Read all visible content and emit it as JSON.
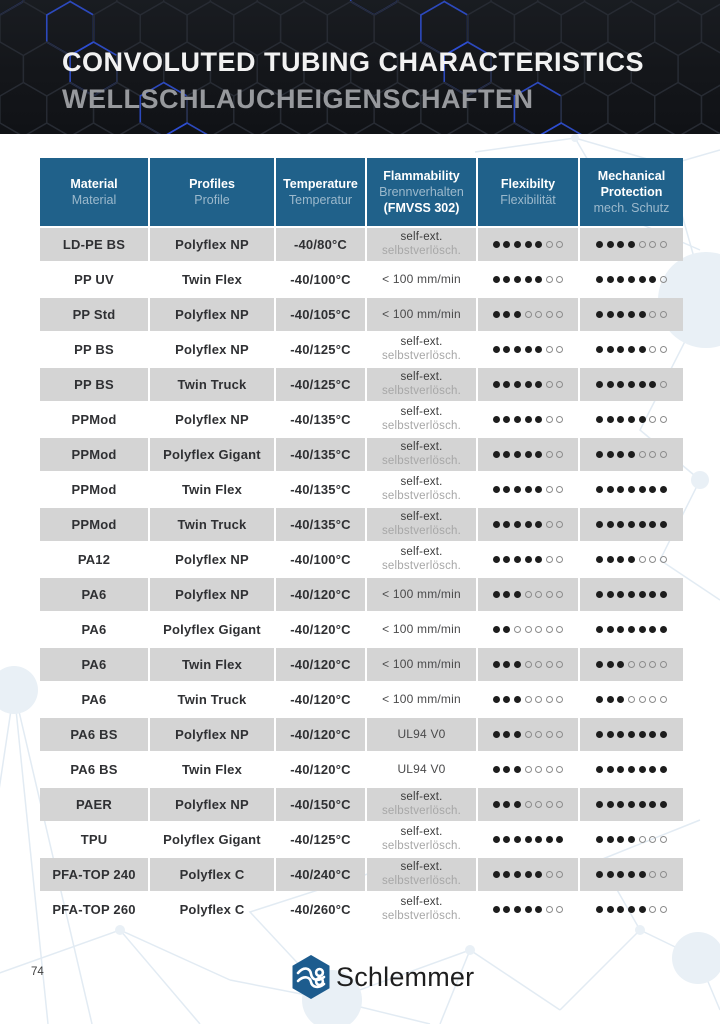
{
  "banner": {
    "title_en": "CONVOLUTED TUBING CHARACTERISTICS",
    "title_de": "WELLSCHLAUCHEIGENSCHAFTEN"
  },
  "table": {
    "columns": [
      {
        "en": "Material",
        "de": "Material"
      },
      {
        "en": "Profiles",
        "de": "Profile"
      },
      {
        "en": "Temperature",
        "de": "Temperatur"
      },
      {
        "en": "Flammability",
        "de": "Brennverhalten",
        "extra": "(FMVSS 302)"
      },
      {
        "en": "Flexibilty",
        "de": "Flexibilität"
      },
      {
        "en": "Mechanical Protection",
        "de": "mech. Schutz"
      }
    ],
    "rating_scale": 7,
    "rows": [
      {
        "material": "LD-PE BS",
        "profile": "Polyflex NP",
        "temperature": "-40/80°C",
        "flammability": [
          "self-ext.",
          "selbstverlösch."
        ],
        "flexibility": 5,
        "protection": 4
      },
      {
        "material": "PP UV",
        "profile": "Twin Flex",
        "temperature": "-40/100°C",
        "flammability": [
          "< 100 mm/min"
        ],
        "flexibility": 5,
        "protection": 6
      },
      {
        "material": "PP Std",
        "profile": "Polyflex NP",
        "temperature": "-40/105°C",
        "flammability": [
          "< 100 mm/min"
        ],
        "flexibility": 3,
        "protection": 5
      },
      {
        "material": "PP BS",
        "profile": "Polyflex NP",
        "temperature": "-40/125°C",
        "flammability": [
          "self-ext.",
          "selbstverlösch."
        ],
        "flexibility": 5,
        "protection": 5
      },
      {
        "material": "PP BS",
        "profile": "Twin Truck",
        "temperature": "-40/125°C",
        "flammability": [
          "self-ext.",
          "selbstverlösch."
        ],
        "flexibility": 5,
        "protection": 6
      },
      {
        "material": "PPMod",
        "profile": "Polyflex NP",
        "temperature": "-40/135°C",
        "flammability": [
          "self-ext.",
          "selbstverlösch."
        ],
        "flexibility": 5,
        "protection": 5
      },
      {
        "material": "PPMod",
        "profile": "Polyflex Gigant",
        "temperature": "-40/135°C",
        "flammability": [
          "self-ext.",
          "selbstverlösch."
        ],
        "flexibility": 5,
        "protection": 4
      },
      {
        "material": "PPMod",
        "profile": "Twin Flex",
        "temperature": "-40/135°C",
        "flammability": [
          "self-ext.",
          "selbstverlösch."
        ],
        "flexibility": 5,
        "protection": 7
      },
      {
        "material": "PPMod",
        "profile": "Twin Truck",
        "temperature": "-40/135°C",
        "flammability": [
          "self-ext.",
          "selbstverlösch."
        ],
        "flexibility": 5,
        "protection": 7
      },
      {
        "material": "PA12",
        "profile": "Polyflex NP",
        "temperature": "-40/100°C",
        "flammability": [
          "self-ext.",
          "selbstverlösch."
        ],
        "flexibility": 5,
        "protection": 4
      },
      {
        "material": "PA6",
        "profile": "Polyflex NP",
        "temperature": "-40/120°C",
        "flammability": [
          "< 100 mm/min"
        ],
        "flexibility": 3,
        "protection": 7
      },
      {
        "material": "PA6",
        "profile": "Polyflex Gigant",
        "temperature": "-40/120°C",
        "flammability": [
          "< 100 mm/min"
        ],
        "flexibility": 2,
        "protection": 7
      },
      {
        "material": "PA6",
        "profile": "Twin Flex",
        "temperature": "-40/120°C",
        "flammability": [
          "< 100 mm/min"
        ],
        "flexibility": 3,
        "protection": 3
      },
      {
        "material": "PA6",
        "profile": "Twin Truck",
        "temperature": "-40/120°C",
        "flammability": [
          "< 100 mm/min"
        ],
        "flexibility": 3,
        "protection": 3
      },
      {
        "material": "PA6 BS",
        "profile": "Polyflex NP",
        "temperature": "-40/120°C",
        "flammability": [
          "UL94 V0"
        ],
        "flexibility": 3,
        "protection": 7
      },
      {
        "material": "PA6 BS",
        "profile": "Twin Flex",
        "temperature": "-40/120°C",
        "flammability": [
          "UL94 V0"
        ],
        "flexibility": 3,
        "protection": 7
      },
      {
        "material": "PAER",
        "profile": "Polyflex NP",
        "temperature": "-40/150°C",
        "flammability": [
          "self-ext.",
          "selbstverlösch."
        ],
        "flexibility": 3,
        "protection": 7
      },
      {
        "material": "TPU",
        "profile": "Polyflex Gigant",
        "temperature": "-40/125°C",
        "flammability": [
          "self-ext.",
          "selbstverlösch."
        ],
        "flexibility": 7,
        "protection": 4
      },
      {
        "material": "PFA-TOP 240",
        "profile": "Polyflex C",
        "temperature": "-40/240°C",
        "flammability": [
          "self-ext.",
          "selbstverlösch."
        ],
        "flexibility": 5,
        "protection": 5
      },
      {
        "material": "PFA-TOP 260",
        "profile": "Polyflex C",
        "temperature": "-40/260°C",
        "flammability": [
          "self-ext.",
          "selbstverlösch."
        ],
        "flexibility": 5,
        "protection": 5
      }
    ]
  },
  "footer": {
    "page_number": "74",
    "brand": "Schlemmer"
  },
  "colors": {
    "header_blue": "#20618a",
    "header_sub_text": "#9cb9cc",
    "row_shade": "#d4d4d4",
    "banner_bg": "#15171b",
    "banner_hex_blue": "#2e4fd6",
    "dot_filled": "#1d1d1d",
    "logo_blue": "#1d5c8e"
  }
}
